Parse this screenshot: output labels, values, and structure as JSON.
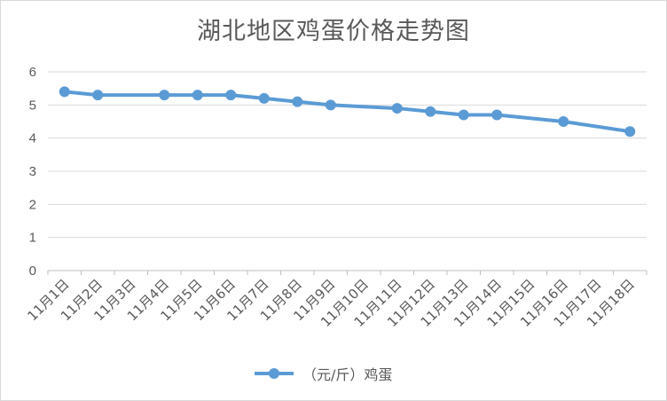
{
  "chart_data": {
    "type": "line",
    "title": "湖北地区鸡蛋价格走势图",
    "categories": [
      "11月1日",
      "11月2日",
      "11月3日",
      "11月4日",
      "11月5日",
      "11月6日",
      "11月7日",
      "11月8日",
      "11月9日",
      "11月10日",
      "11月11日",
      "11月12日",
      "11月13日",
      "11月14日",
      "11月15日",
      "11月16日",
      "11月17日",
      "11月18日"
    ],
    "series": [
      {
        "name": "（元/斤）鸡蛋",
        "color": "#5b9bd5",
        "values": [
          5.4,
          5.3,
          null,
          5.3,
          5.3,
          5.3,
          5.2,
          5.1,
          5.0,
          null,
          4.9,
          4.8,
          4.7,
          4.7,
          null,
          4.5,
          null,
          4.2
        ]
      }
    ],
    "ylim": [
      0,
      6
    ],
    "yticks": [
      0,
      1,
      2,
      3,
      4,
      5,
      6
    ],
    "grid": true,
    "legend": "bottom",
    "xlabel": "",
    "ylabel": ""
  }
}
